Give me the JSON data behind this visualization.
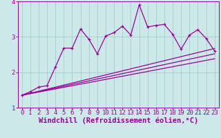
{
  "background_color": "#cce8e8",
  "line_color": "#990099",
  "xlabel": "Windchill (Refroidissement éolien,°C)",
  "xlim_min": -0.5,
  "xlim_max": 23.5,
  "ylim_min": 1.0,
  "ylim_max": 4.0,
  "yticks": [
    1,
    2,
    3,
    4
  ],
  "xticks": [
    0,
    1,
    2,
    3,
    4,
    5,
    6,
    7,
    8,
    9,
    10,
    11,
    12,
    13,
    14,
    15,
    16,
    17,
    18,
    19,
    20,
    21,
    22,
    23
  ],
  "scatter_x": [
    0,
    1,
    2,
    3,
    4,
    5,
    6,
    7,
    8,
    9,
    10,
    11,
    12,
    13,
    14,
    15,
    16,
    17,
    18,
    19,
    20,
    21,
    22,
    23
  ],
  "scatter_y": [
    1.35,
    1.45,
    1.58,
    1.62,
    2.15,
    2.68,
    2.68,
    3.22,
    2.93,
    2.52,
    3.02,
    3.12,
    3.3,
    3.05,
    3.9,
    3.28,
    3.32,
    3.35,
    3.07,
    2.65,
    3.05,
    3.2,
    2.95,
    2.6
  ],
  "line1_x": [
    0,
    23
  ],
  "line1_y": [
    1.35,
    2.38
  ],
  "line2_x": [
    0,
    23
  ],
  "line2_y": [
    1.35,
    2.52
  ],
  "line3_x": [
    0,
    23
  ],
  "line3_y": [
    1.35,
    2.67
  ],
  "grid_color": "#aad0d0",
  "font_color": "#990099",
  "tick_fontsize": 6.5,
  "xlabel_fontsize": 7.5
}
